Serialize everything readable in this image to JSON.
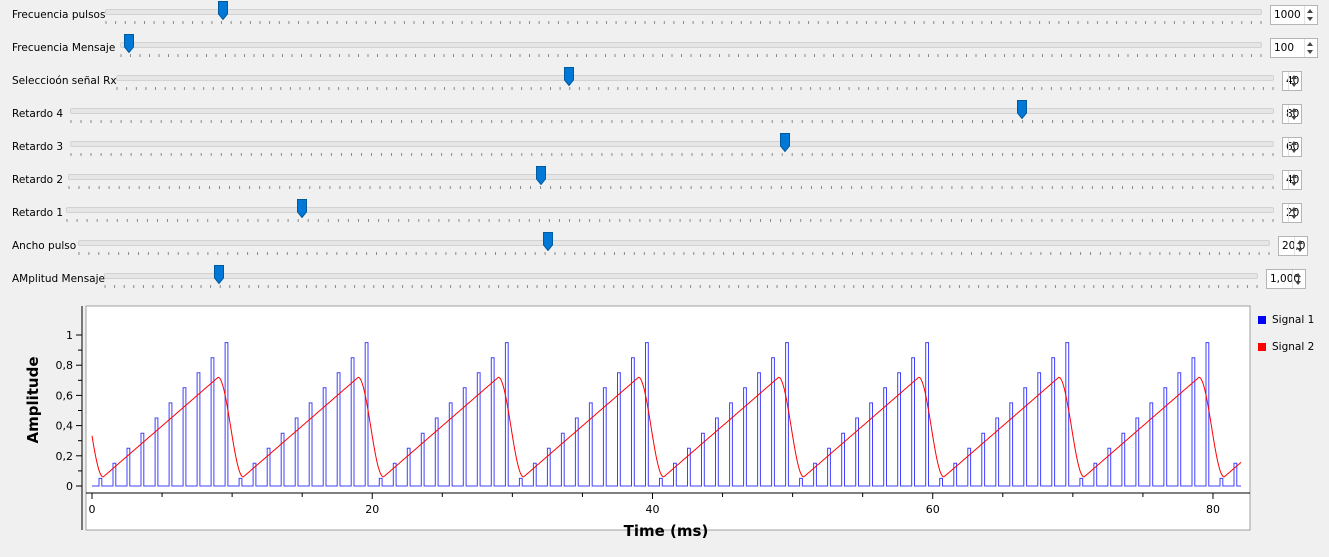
{
  "sliders": [
    {
      "name": "frecuencia-pulsos",
      "label": "Frecuencia pulsos",
      "value": "1000",
      "position_pct": 10.2
    },
    {
      "name": "frecuencia-mensaje",
      "label": "Frecuencia Mensaje",
      "value": "100",
      "position_pct": 0.8
    },
    {
      "name": "seleccion-senal-rx",
      "label": "Seleccioón señal Rx",
      "value": "40",
      "position_pct": 39.2
    },
    {
      "name": "retardo-4",
      "label": "Retardo 4",
      "value": "80",
      "position_pct": 79.2
    },
    {
      "name": "retardo-3",
      "label": "Retardo 3",
      "value": "60",
      "position_pct": 59.5
    },
    {
      "name": "retardo-2",
      "label": "Retardo 2",
      "value": "40",
      "position_pct": 39.3
    },
    {
      "name": "retardo-1",
      "label": "Retardo 1",
      "value": "20",
      "position_pct": 19.6
    },
    {
      "name": "ancho-pulso",
      "label": "Ancho pulso",
      "value": "20,0",
      "position_pct": 39.5
    },
    {
      "name": "amplitud-mensaje",
      "label": "AMplitud Mensaje",
      "value": "1,000",
      "position_pct": 10.0
    }
  ],
  "colors": {
    "accent": "#0078d7",
    "signal1": "#0000ff",
    "signal2": "#ff0000"
  },
  "chart_data": {
    "type": "line",
    "title": "",
    "xlabel": "Time (ms)",
    "ylabel": "Amplitude",
    "xlim": [
      0,
      82
    ],
    "ylim": [
      0,
      1.1
    ],
    "xticks": [
      0,
      20,
      40,
      60,
      80
    ],
    "yticks": [
      0,
      0.2,
      0.4,
      0.6,
      0.8,
      1
    ],
    "ytick_labels": [
      "0",
      "0,2",
      "0,4",
      "0,6",
      "0,8",
      "1"
    ],
    "legend_position": "right",
    "series": [
      {
        "name": "Signal 1",
        "color": "#0000ff",
        "description_period_ms": 10,
        "pulse_period_ms": 1,
        "pulse_width_ms": 0.2,
        "peak_values": [
          0.05,
          0.15,
          0.25,
          0.35,
          0.45,
          0.55,
          0.65,
          0.75,
          0.85,
          0.95
        ]
      },
      {
        "name": "Signal 2",
        "color": "#ff0000",
        "period_ms": 10,
        "min": 0.06,
        "max": 0.72
      }
    ],
    "grid": false
  }
}
